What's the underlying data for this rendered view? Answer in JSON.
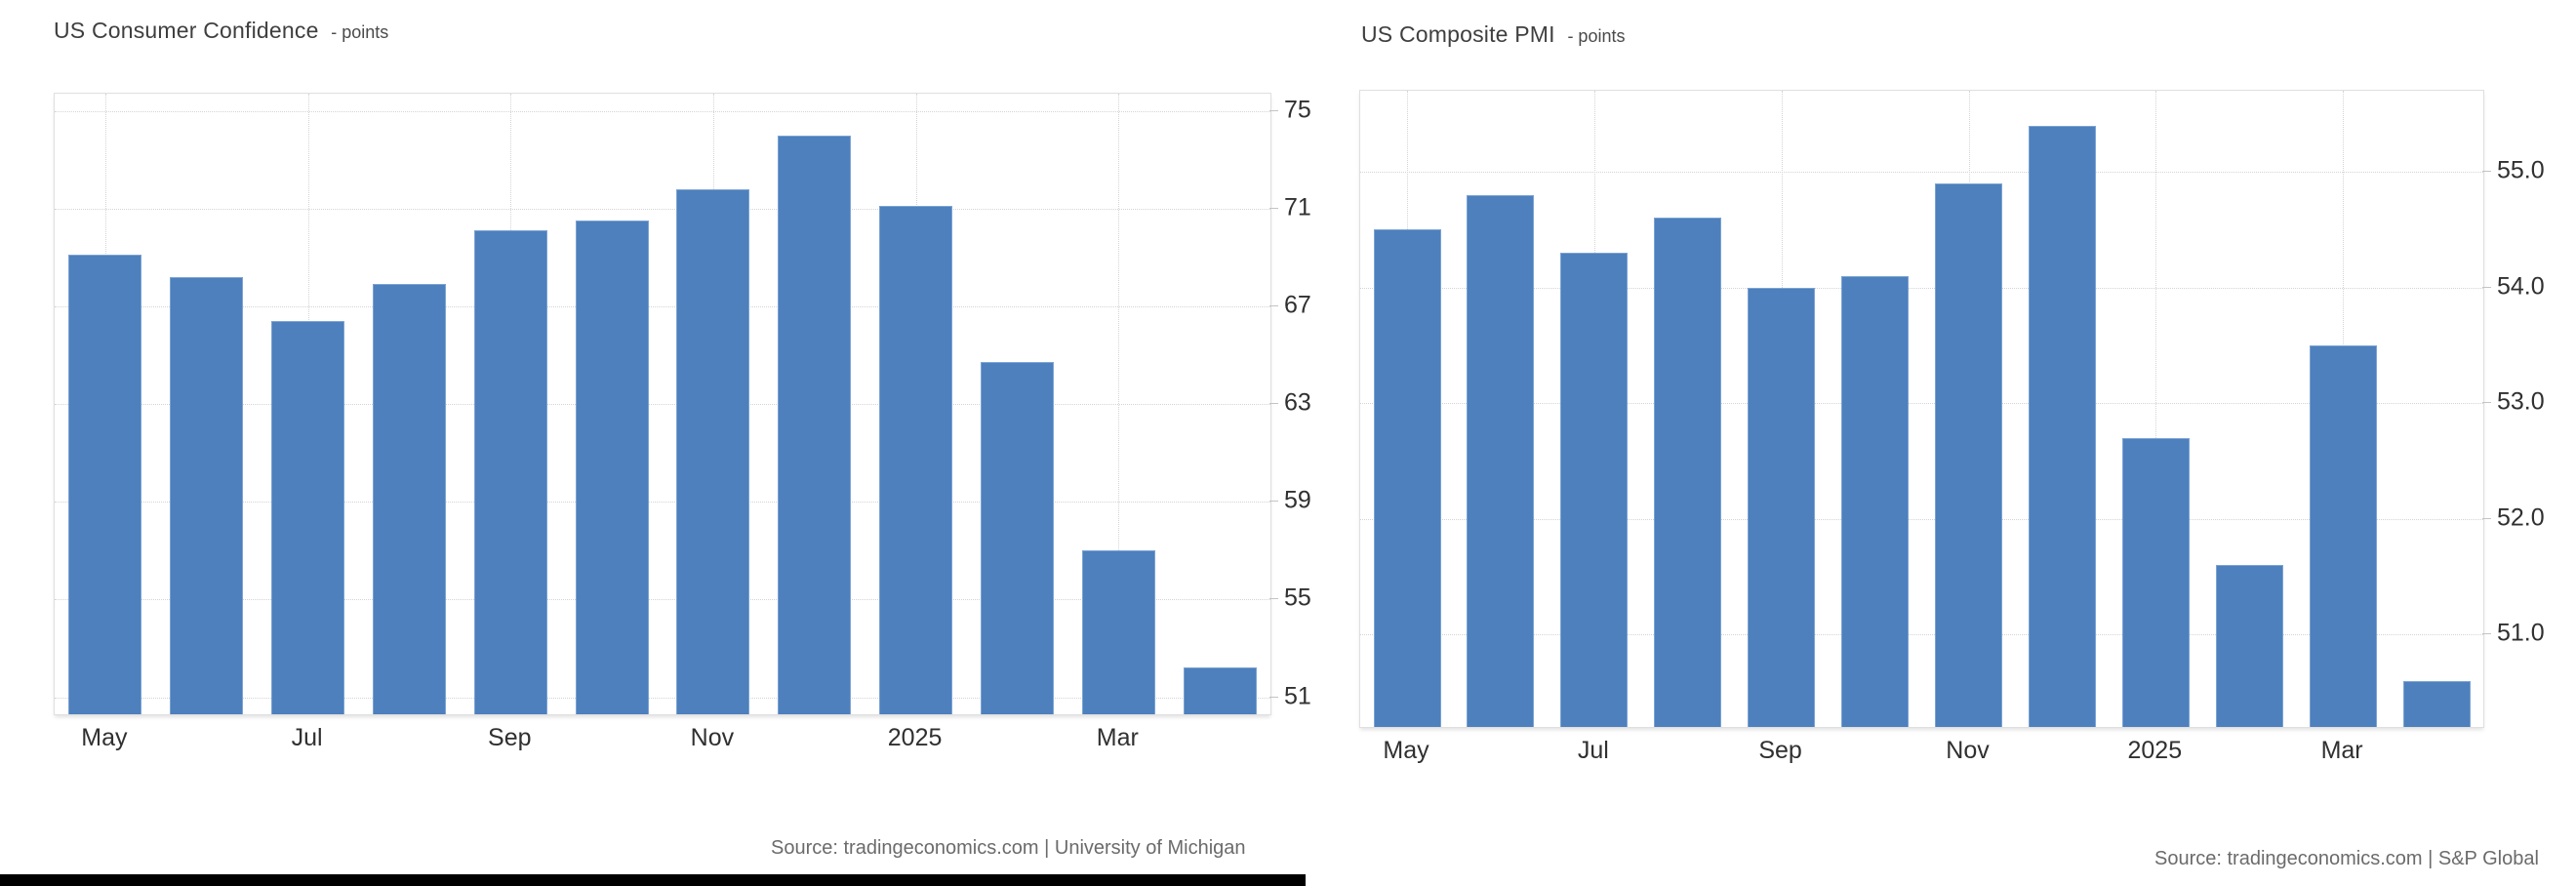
{
  "charts": [
    {
      "title": "US Consumer Confidence",
      "subtitle": "- points",
      "source": "Source: tradingeconomics.com | University of Michigan",
      "chart_data": {
        "type": "bar",
        "title": "US Consumer Confidence - points",
        "ylabel": "points",
        "legend": "none",
        "grid": "dotted",
        "y_axis_side": "right",
        "bar_color": "#4d80bc",
        "categories": [
          "May 2024",
          "Jun 2024",
          "Jul 2024",
          "Aug 2024",
          "Sep 2024",
          "Oct 2024",
          "Nov 2024",
          "Dec 2024",
          "Jan 2025",
          "Feb 2025",
          "Mar 2025",
          "Apr 2025"
        ],
        "values": [
          69.1,
          68.2,
          66.4,
          67.9,
          70.1,
          70.5,
          71.8,
          74.0,
          71.1,
          64.7,
          57.0,
          52.2
        ],
        "x_ticks": [
          {
            "index": 0,
            "label": "May"
          },
          {
            "index": 2,
            "label": "Jul"
          },
          {
            "index": 4,
            "label": "Sep"
          },
          {
            "index": 6,
            "label": "Nov"
          },
          {
            "index": 8,
            "label": "2025"
          },
          {
            "index": 10,
            "label": "Mar"
          }
        ],
        "y_ticks": [
          {
            "value": 75,
            "label": "75"
          },
          {
            "value": 71,
            "label": "71"
          },
          {
            "value": 67,
            "label": "67"
          },
          {
            "value": 63,
            "label": "63"
          },
          {
            "value": 59,
            "label": "59"
          },
          {
            "value": 55,
            "label": "55"
          },
          {
            "value": 51,
            "label": "51"
          }
        ],
        "ylim": [
          50.3,
          75.7
        ]
      }
    },
    {
      "title": "US Composite PMI",
      "subtitle": "- points",
      "source": "Source: tradingeconomics.com | S&P Global",
      "chart_data": {
        "type": "bar",
        "title": "US Composite PMI - points",
        "ylabel": "points",
        "legend": "none",
        "grid": "dotted",
        "y_axis_side": "right",
        "bar_color": "#4d80bc",
        "categories": [
          "May 2024",
          "Jun 2024",
          "Jul 2024",
          "Aug 2024",
          "Sep 2024",
          "Oct 2024",
          "Nov 2024",
          "Dec 2024",
          "Jan 2025",
          "Feb 2025",
          "Mar 2025",
          "Apr 2025"
        ],
        "values": [
          54.5,
          54.8,
          54.3,
          54.6,
          54.0,
          54.1,
          54.9,
          55.4,
          52.7,
          51.6,
          53.5,
          50.6
        ],
        "x_ticks": [
          {
            "index": 0,
            "label": "May"
          },
          {
            "index": 2,
            "label": "Jul"
          },
          {
            "index": 4,
            "label": "Sep"
          },
          {
            "index": 6,
            "label": "Nov"
          },
          {
            "index": 8,
            "label": "2025"
          },
          {
            "index": 10,
            "label": "Mar"
          }
        ],
        "y_ticks": [
          {
            "value": 55.0,
            "label": "55.0"
          },
          {
            "value": 54.0,
            "label": "54.0"
          },
          {
            "value": 53.0,
            "label": "53.0"
          },
          {
            "value": 52.0,
            "label": "52.0"
          },
          {
            "value": 51.0,
            "label": "51.0"
          }
        ],
        "ylim": [
          50.2,
          55.7
        ]
      }
    }
  ],
  "colors": {
    "bar": "#4d80bc",
    "bar_edge": "#7ba3d4",
    "grid": "#d4d4d4",
    "axis_text": "#303030",
    "title_text": "#3f3f3f",
    "source_text": "#6b6b6b",
    "background": "#ffffff",
    "bottom_bar": "#000000"
  }
}
